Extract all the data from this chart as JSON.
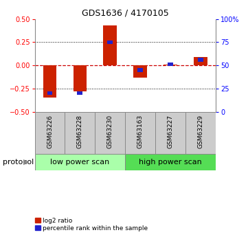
{
  "title": "GDS1636 / 4170105",
  "samples": [
    "GSM63226",
    "GSM63228",
    "GSM63230",
    "GSM63163",
    "GSM63227",
    "GSM63229"
  ],
  "log2_ratio": [
    -0.35,
    -0.28,
    0.43,
    -0.13,
    0.005,
    0.09
  ],
  "percentile_rank": [
    20,
    20,
    75,
    45,
    51,
    56
  ],
  "bar_color_red": "#cc2200",
  "bar_color_blue": "#2222cc",
  "ylim_left": [
    -0.5,
    0.5
  ],
  "ylim_right": [
    0,
    100
  ],
  "yticks_left": [
    -0.5,
    -0.25,
    0.0,
    0.25,
    0.5
  ],
  "yticks_right": [
    0,
    25,
    50,
    75,
    100
  ],
  "groups": [
    {
      "label": "low power scan",
      "color": "#aaffaa",
      "start": 0,
      "end": 3
    },
    {
      "label": "high power scan",
      "color": "#55dd55",
      "start": 3,
      "end": 6
    }
  ],
  "protocol_label": "protocol",
  "legend_items": [
    {
      "label": "log2 ratio",
      "color": "#cc2200"
    },
    {
      "label": "percentile rank within the sample",
      "color": "#2222cc"
    }
  ],
  "bg_color": "#ffffff",
  "zero_line_color": "#cc0000",
  "bar_width": 0.45,
  "blue_bar_width": 0.18,
  "blue_bar_height": 0.04,
  "sample_box_color": "#cccccc",
  "title_fontsize": 9,
  "tick_fontsize": 7,
  "label_fontsize": 6.5,
  "protocol_fontsize": 8,
  "group_fontsize": 8,
  "legend_fontsize": 6.5
}
